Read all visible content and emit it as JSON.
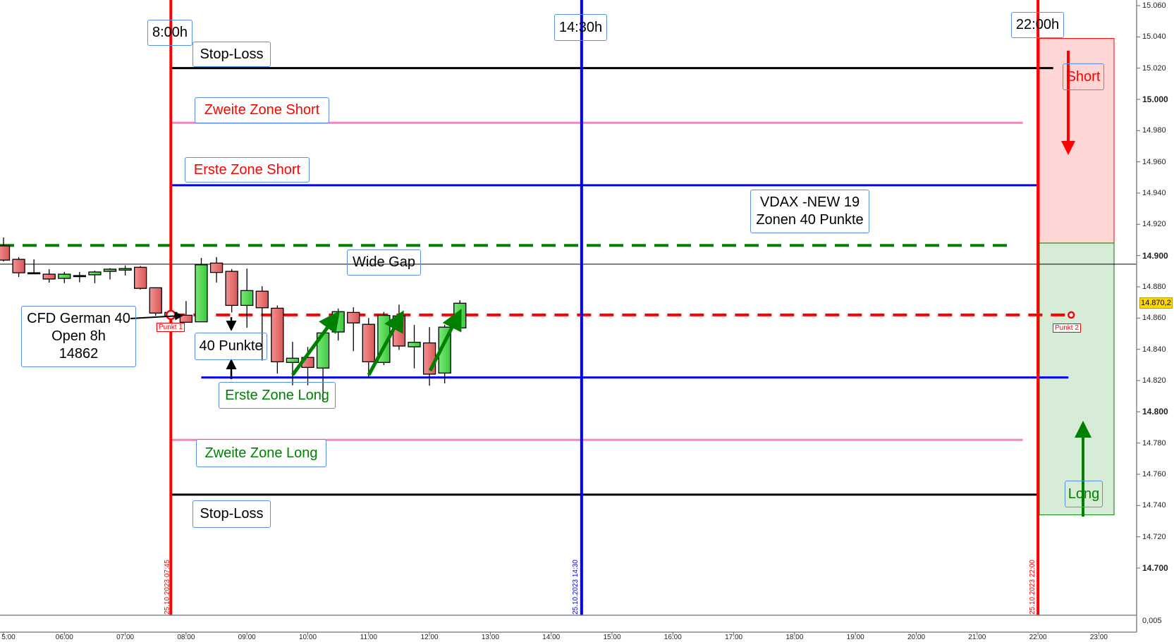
{
  "chart_data": {
    "type": "candlestick",
    "instrument": "CFD German 40",
    "ylim": [
      14680,
      15065
    ],
    "xlim": [
      "05:00",
      "23:30"
    ],
    "y_ticks": [
      "15.060",
      "15.040",
      "15.020",
      "15.000",
      "14.980",
      "14.960",
      "14.940",
      "14.920",
      "14.900",
      "14.880",
      "14.860",
      "14.840",
      "14.820",
      "14.800",
      "14.780",
      "14.760",
      "14.740",
      "14.720",
      "14.700"
    ],
    "y_ticks_bold": [
      "15.000",
      "14.900",
      "14.800",
      "14.700"
    ],
    "x_ticks": [
      "5:00",
      "06:00",
      "07:00",
      "08:00",
      "09:00",
      "10:00",
      "11:00",
      "12:00",
      "13:00",
      "14:00",
      "15:00",
      "16:00",
      "17:00",
      "18:00",
      "19:00",
      "20:00",
      "21:00",
      "22:00",
      "23:00"
    ],
    "last_price": "14.870,2",
    "lower_panel_tick": "0,005",
    "candles": [
      [
        "05:00",
        14906.2,
        14911.6,
        14896.2,
        14897.1
      ],
      [
        "05:15",
        14897.6,
        14899.0,
        14886.3,
        14889.0
      ],
      [
        "05:30",
        14889.0,
        14897.6,
        14889.0,
        14889.0
      ],
      [
        "05:45",
        14888.1,
        14891.3,
        14882.7,
        14885.0
      ],
      [
        "06:00",
        14885.4,
        14889.5,
        14882.4,
        14888.1
      ],
      [
        "06:15",
        14887.2,
        14889.5,
        14882.9,
        14887.2
      ],
      [
        "06:30",
        14887.7,
        14890.4,
        14882.3,
        14889.5
      ],
      [
        "06:45",
        14889.9,
        14891.9,
        14884.7,
        14891.3
      ],
      [
        "07:00",
        14890.7,
        14893.7,
        14887.2,
        14891.7
      ],
      [
        "07:15",
        14892.5,
        14893.3,
        14878.3,
        14879.0
      ],
      [
        "07:30",
        14879.4,
        14879.6,
        14861.5,
        14863.2
      ],
      [
        "07:45",
        14863.6,
        14863.9,
        14860.5,
        14860.9
      ],
      [
        "08:00",
        14861.8,
        14870.9,
        14857.3,
        14857.3
      ],
      [
        "08:15",
        14857.6,
        14898.5,
        14857.6,
        14894.1
      ],
      [
        "08:30",
        14895.2,
        14899.0,
        14882.8,
        14889.2
      ],
      [
        "08:45",
        14889.9,
        14891.4,
        14863.6,
        14868.1
      ],
      [
        "09:00",
        14868.1,
        14891.7,
        14853.8,
        14877.6
      ],
      [
        "09:15",
        14877.2,
        14880.4,
        14832.8,
        14866.6
      ],
      [
        "09:30",
        14866.3,
        14868.1,
        14824.5,
        14832.0
      ],
      [
        "09:45",
        14831.6,
        14844.8,
        14817.0,
        14834.3
      ],
      [
        "10:00",
        14834.8,
        14841.5,
        14817.0,
        14828.4
      ],
      [
        "10:15",
        14828.0,
        14851.6,
        14806.5,
        14850.5
      ],
      [
        "10:30",
        14851.1,
        14866.1,
        14845.6,
        14864.1
      ],
      [
        "10:45",
        14863.6,
        14866.9,
        14838.8,
        14856.9
      ],
      [
        "11:00",
        14856.0,
        14860.0,
        14821.8,
        14832.0
      ],
      [
        "11:15",
        14831.6,
        14863.9,
        14829.9,
        14861.7
      ],
      [
        "11:30",
        14861.4,
        14868.6,
        14839.6,
        14842.1
      ],
      [
        "11:45",
        14841.6,
        14855.6,
        14827.8,
        14844.5
      ],
      [
        "12:00",
        14844.1,
        14854.2,
        14816.7,
        14824.1
      ],
      [
        "12:15",
        14824.8,
        14855.6,
        14818.2,
        14854.2
      ],
      [
        "12:30",
        14853.7,
        14871.4,
        14851.3,
        14869.5
      ]
    ],
    "vertical_lines": [
      {
        "time": "07:45",
        "color": "#ff0000",
        "label": "25.10.2023 07:45",
        "tag": "8:00h"
      },
      {
        "time": "14:30",
        "color": "#0000ff",
        "label": "25.10.2023 14:30",
        "tag": "14:30h"
      },
      {
        "time": "22:00",
        "color": "#ff0000",
        "label": "25.10.2023 22:00",
        "tag": "22:00h"
      }
    ],
    "levels": [
      {
        "name": "stop-loss-top",
        "price": 15020,
        "from": "07:45",
        "to": "22:15",
        "color": "#000000",
        "width": 3,
        "dash": false
      },
      {
        "name": "zweite-zone-short",
        "price": 14985,
        "from": "07:45",
        "to": "21:45",
        "color": "#ff80c0",
        "width": 3,
        "dash": false
      },
      {
        "name": "erste-zone-short",
        "price": 14945,
        "from": "07:45",
        "to": "22:00",
        "color": "#0000ff",
        "width": 3,
        "dash": false
      },
      {
        "name": "wide-gap",
        "price": 14906.5,
        "from": "04:45",
        "to": "21:30",
        "color": "#008000",
        "width": 4,
        "dash": true
      },
      {
        "name": "previous-close",
        "price": 14894.5,
        "from": "04:45",
        "to": "23:45",
        "color": "#000000",
        "width": 1,
        "dash": false
      },
      {
        "name": "open-8h",
        "price": 14862,
        "from": "07:45",
        "to": "22:30",
        "color": "#ff0000",
        "width": 4,
        "dash": true
      },
      {
        "name": "erste-zone-long",
        "price": 14822,
        "from": "08:15",
        "to": "22:30",
        "color": "#0000ff",
        "width": 3,
        "dash": false
      },
      {
        "name": "zweite-zone-long",
        "price": 14782,
        "from": "07:45",
        "to": "21:45",
        "color": "#ff80c0",
        "width": 3,
        "dash": false
      },
      {
        "name": "stop-loss-bottom",
        "price": 14747,
        "from": "07:45",
        "to": "22:00",
        "color": "#000000",
        "width": 3,
        "dash": false
      }
    ],
    "zones": [
      {
        "name": "short-zone",
        "from_price": 14908,
        "to_price": 15039,
        "fill": "#ffd6d6",
        "stroke": "#ff0000"
      },
      {
        "name": "long-zone",
        "from_price": 14734,
        "to_price": 14908,
        "fill": "#d6ecd6",
        "stroke": "#008000"
      }
    ],
    "points": [
      {
        "label": "Punkt 1",
        "time": "07:45",
        "price": 14862
      },
      {
        "label": "Punkt 2",
        "time": "22:30",
        "price": 14862
      }
    ]
  },
  "annotations": {
    "stop_loss_top": "Stop-Loss",
    "zweite_zone_short": "Zweite Zone Short",
    "erste_zone_short": "Erste Zone Short",
    "vdax_line1": "VDAX -NEW 19",
    "vdax_line2": "Zonen 40 Punkte",
    "wide_gap": "Wide Gap",
    "cfd_line1": "CFD German 40",
    "cfd_line2": "Open 8h",
    "cfd_line3": "14862",
    "punkte": "40 Punkte",
    "erste_zone_long": "Erste Zone Long",
    "zweite_zone_long": "Zweite Zone Long",
    "stop_loss_bottom": "Stop-Loss",
    "short": "Short",
    "long": "Long"
  },
  "colors": {
    "bull": "#55dd55",
    "bear": "#e86a6a",
    "axis": "#808890"
  }
}
